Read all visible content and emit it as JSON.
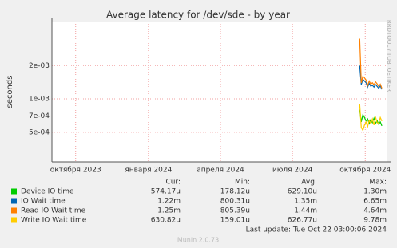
{
  "chart_data": {
    "type": "line",
    "title": "Average latency for /dev/sde - by year",
    "y_label": "seconds",
    "side_text": "RRDTOOL / TOBI OETIKER",
    "log_y": true,
    "grid": true,
    "ylim": [
      0.00027,
      0.005
    ],
    "yticks": [
      {
        "value": 0.002,
        "label": "2e-03"
      },
      {
        "value": 0.001,
        "label": "1e-03"
      },
      {
        "value": 0.0007,
        "label": "7e-04"
      },
      {
        "value": 0.0005,
        "label": "5e-04"
      }
    ],
    "xlim": [
      "2023-09-01",
      "2024-10-29"
    ],
    "xticks": [
      {
        "value": "2023-10-01",
        "label": "октября 2023"
      },
      {
        "value": "2024-01-01",
        "label": "января 2024"
      },
      {
        "value": "2024-04-01",
        "label": "апреля 2024"
      },
      {
        "value": "2024-07-01",
        "label": "июля 2024"
      },
      {
        "value": "2024-10-01",
        "label": "октября 2024"
      }
    ],
    "x": [
      "2024-09-24",
      "2024-09-26",
      "2024-09-28",
      "2024-09-30",
      "2024-10-02",
      "2024-10-04",
      "2024-10-06",
      "2024-10-08",
      "2024-10-10",
      "2024-10-12",
      "2024-10-14",
      "2024-10-16",
      "2024-10-18",
      "2024-10-20",
      "2024-10-22"
    ],
    "series": [
      {
        "name": "Device IO time",
        "color": "#00cc00",
        "values": [
          0.0008,
          0.00062,
          0.00072,
          0.00068,
          0.00063,
          0.00066,
          0.0006,
          0.00065,
          0.00061,
          0.00067,
          0.0006,
          0.00064,
          0.00059,
          0.00062,
          0.00057
        ]
      },
      {
        "name": "IO Wait time",
        "color": "#0066b3",
        "values": [
          0.002,
          0.00135,
          0.0015,
          0.00145,
          0.0014,
          0.00128,
          0.00138,
          0.0013,
          0.00133,
          0.00128,
          0.00135,
          0.0013,
          0.00125,
          0.00131,
          0.00122
        ]
      },
      {
        "name": "Read IO Wait time",
        "color": "#ff8000",
        "values": [
          0.0035,
          0.0014,
          0.0016,
          0.00155,
          0.00148,
          0.00132,
          0.00145,
          0.00136,
          0.0014,
          0.00134,
          0.00143,
          0.00137,
          0.0013,
          0.00136,
          0.00125
        ]
      },
      {
        "name": "Write IO Wait time",
        "color": "#ffcc00",
        "values": [
          0.0009,
          0.00055,
          0.00052,
          0.00058,
          0.00062,
          0.00056,
          0.00064,
          0.0006,
          0.00066,
          0.00058,
          0.00069,
          0.00061,
          0.0006,
          0.00068,
          0.00063
        ]
      }
    ],
    "summary_header": [
      "Cur:",
      "Min:",
      "Avg:",
      "Max:"
    ],
    "summary": [
      [
        "574.17u",
        "178.12u",
        "629.10u",
        "1.30m"
      ],
      [
        "1.22m",
        "800.31u",
        "1.35m",
        "6.65m"
      ],
      [
        "1.25m",
        "805.39u",
        "1.44m",
        "4.64m"
      ],
      [
        "630.82u",
        "159.01u",
        "626.77u",
        "9.78m"
      ]
    ],
    "last_update": "Last update: Tue Oct 22 03:00:06 2024",
    "footer": "Munin 2.0.73"
  }
}
